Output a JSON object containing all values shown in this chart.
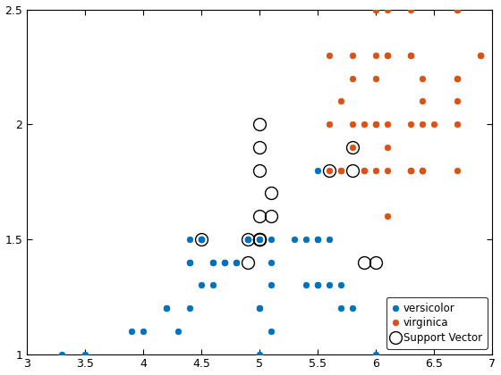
{
  "versicolor_x": [
    4.9,
    5.0,
    5.0,
    4.9,
    5.5,
    5.6,
    5.8,
    6.0,
    5.4,
    5.4,
    5.7,
    5.6,
    5.7,
    5.1,
    5.5,
    5.5,
    5.5,
    5.5,
    5.1,
    5.3,
    4.5,
    4.5,
    4.7,
    5.1,
    5.1,
    5.0,
    5.0,
    5.0,
    4.5,
    4.6,
    4.5,
    4.9,
    4.9,
    4.8,
    4.8,
    4.7,
    4.6,
    4.6,
    4.5,
    4.0,
    4.2,
    4.2,
    4.3,
    4.4,
    4.4,
    4.4,
    4.4,
    3.5,
    3.9,
    3.3
  ],
  "versicolor_y": [
    1.5,
    1.5,
    1.5,
    1.5,
    1.3,
    1.3,
    1.2,
    1.0,
    1.3,
    1.5,
    1.3,
    1.5,
    1.2,
    1.1,
    1.3,
    1.8,
    1.5,
    1.5,
    1.5,
    1.5,
    1.5,
    1.5,
    1.4,
    1.4,
    1.3,
    1.2,
    1.2,
    1.0,
    1.3,
    1.4,
    1.5,
    1.5,
    1.5,
    1.4,
    1.4,
    1.4,
    1.3,
    1.4,
    1.5,
    1.1,
    1.2,
    1.2,
    1.1,
    1.2,
    1.5,
    1.4,
    1.4,
    1.0,
    1.1,
    1.0
  ],
  "virginica_x": [
    6.0,
    6.0,
    6.0,
    6.1,
    6.1,
    6.1,
    6.7,
    6.0,
    6.4,
    6.1,
    5.6,
    5.6,
    5.8,
    6.0,
    5.9,
    6.3,
    5.8,
    6.7,
    6.3,
    6.4,
    6.0,
    6.4,
    5.9,
    6.0,
    6.1,
    6.3,
    5.6,
    5.8,
    5.7,
    5.8,
    5.7,
    5.7,
    5.9,
    6.9,
    6.7,
    6.9,
    6.7,
    6.7,
    6.7,
    6.7,
    6.4,
    6.3,
    6.3,
    6.3,
    6.5,
    6.1,
    6.3,
    6.4,
    6.1,
    6.4
  ],
  "virginica_y": [
    2.5,
    2.5,
    1.8,
    1.8,
    2.5,
    2.3,
    2.2,
    2.3,
    2.0,
    2.0,
    2.0,
    2.3,
    2.3,
    2.0,
    2.0,
    2.5,
    2.2,
    2.1,
    1.8,
    2.2,
    2.0,
    1.8,
    1.8,
    2.2,
    1.9,
    2.0,
    1.8,
    2.0,
    2.1,
    1.9,
    1.8,
    1.8,
    1.8,
    2.3,
    2.5,
    2.3,
    2.5,
    2.2,
    2.0,
    1.8,
    1.8,
    1.8,
    2.3,
    2.3,
    2.0,
    2.3,
    1.8,
    1.8,
    1.6,
    2.1
  ],
  "sv_x": [
    4.9,
    5.0,
    5.0,
    5.0,
    5.0,
    4.9,
    4.5,
    5.1,
    5.0,
    5.1,
    5.0,
    5.0,
    5.0,
    5.6,
    5.8,
    5.8,
    6.0,
    5.9
  ],
  "sv_y": [
    1.5,
    1.5,
    1.5,
    1.5,
    1.5,
    1.4,
    1.5,
    1.6,
    1.6,
    1.7,
    1.8,
    1.9,
    2.0,
    1.8,
    1.8,
    1.9,
    1.4,
    1.4
  ],
  "versicolor_color": "#0072BD",
  "virginica_color": "#D95319",
  "sv_circle_color": "black",
  "xlim": [
    3.0,
    7.0
  ],
  "ylim": [
    1.0,
    2.5
  ],
  "xticks": [
    3.0,
    3.5,
    4.0,
    4.5,
    5.0,
    5.5,
    6.0,
    6.5,
    7.0
  ],
  "yticks": [
    1.0,
    1.5,
    2.0,
    2.5
  ],
  "markersize": 5,
  "sv_markersize": 10,
  "sv_linewidth": 1.0,
  "legend_loc": "lower right",
  "legend_fontsize": 8.5
}
